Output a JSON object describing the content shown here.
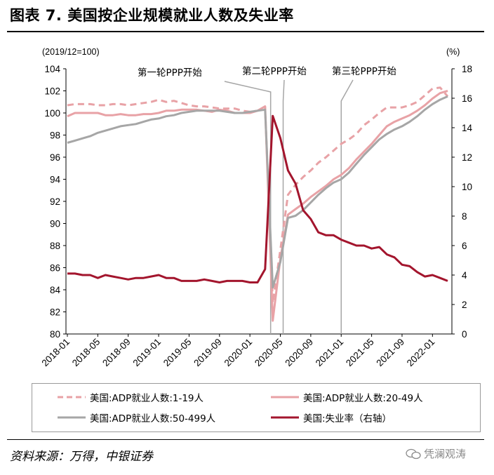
{
  "figure": {
    "title": "图表 7. 美国按企业规模就业人数及失业率",
    "source": "资料来源：万得，中银证券",
    "watermark": "凭澜观涛"
  },
  "chart_data": {
    "type": "line",
    "left_unit": "(2019/12=100)",
    "right_unit": "(%)",
    "ylim_left": [
      80,
      104
    ],
    "ylim_right": [
      0,
      18
    ],
    "yticks_left": [
      "80",
      "82",
      "84",
      "86",
      "88",
      "90",
      "92",
      "94",
      "96",
      "98",
      "100",
      "102",
      "104"
    ],
    "yticks_right": [
      "0",
      "2",
      "4",
      "6",
      "8",
      "10",
      "12",
      "14",
      "16",
      "18"
    ],
    "x": [
      "2018-01",
      "2018-02",
      "2018-03",
      "2018-04",
      "2018-05",
      "2018-06",
      "2018-07",
      "2018-08",
      "2018-09",
      "2018-10",
      "2018-11",
      "2018-12",
      "2019-01",
      "2019-02",
      "2019-03",
      "2019-04",
      "2019-05",
      "2019-06",
      "2019-07",
      "2019-08",
      "2019-09",
      "2019-10",
      "2019-11",
      "2019-12",
      "2020-01",
      "2020-02",
      "2020-03",
      "2020-04",
      "2020-05",
      "2020-06",
      "2020-07",
      "2020-08",
      "2020-09",
      "2020-10",
      "2020-11",
      "2020-12",
      "2021-01",
      "2021-02",
      "2021-03",
      "2021-04",
      "2021-05",
      "2021-06",
      "2021-07",
      "2021-08",
      "2021-09",
      "2021-10",
      "2021-11",
      "2021-12",
      "2022-01",
      "2022-02",
      "2022-03"
    ],
    "xtick_labels": [
      "2018-01",
      "2018-05",
      "2018-09",
      "2019-01",
      "2019-05",
      "2019-09",
      "2020-01",
      "2020-05",
      "2020-09",
      "2021-01",
      "2021-05",
      "2021-09",
      "2022-01"
    ],
    "series": [
      {
        "name": "美国:ADP就业人数:1-19人",
        "axis": "left",
        "color": "#e8a2a6",
        "style": "dashed",
        "values": [
          100.7,
          100.8,
          100.8,
          100.8,
          100.7,
          100.7,
          100.8,
          100.8,
          100.7,
          100.8,
          100.9,
          101.0,
          101.2,
          101.0,
          101.1,
          100.9,
          100.7,
          100.6,
          100.6,
          100.5,
          100.4,
          100.4,
          100.4,
          100.2,
          100.1,
          100.2,
          100.5,
          82.8,
          87.6,
          92.6,
          93.5,
          94.2,
          94.8,
          95.5,
          96.0,
          96.6,
          97.2,
          97.6,
          98.1,
          98.9,
          99.4,
          100.0,
          100.5,
          100.5,
          100.5,
          100.7,
          101.0,
          101.6,
          102.2,
          102.3,
          101.5
        ]
      },
      {
        "name": "美国:ADP就业人数:20-49人",
        "axis": "left",
        "color": "#e8a2a6",
        "style": "solid",
        "values": [
          99.7,
          100.0,
          100.0,
          100.0,
          100.0,
          99.8,
          99.8,
          99.9,
          99.8,
          99.8,
          99.9,
          99.9,
          100.0,
          100.2,
          100.2,
          100.3,
          100.3,
          100.3,
          100.2,
          100.1,
          100.3,
          100.2,
          100.0,
          100.0,
          100.0,
          100.2,
          100.6,
          81.2,
          86.8,
          90.8,
          91.3,
          91.8,
          92.4,
          92.9,
          93.4,
          94.0,
          94.4,
          95.0,
          95.8,
          96.5,
          97.2,
          98.0,
          98.8,
          99.2,
          99.5,
          99.8,
          100.2,
          100.7,
          101.3,
          101.8,
          102.0
        ]
      },
      {
        "name": "美国:ADP就业人数:50-499人",
        "axis": "left",
        "color": "#a6a6a6",
        "style": "solid",
        "values": [
          97.3,
          97.5,
          97.7,
          97.9,
          98.2,
          98.4,
          98.6,
          98.8,
          98.9,
          99.0,
          99.2,
          99.4,
          99.5,
          99.7,
          99.8,
          100.0,
          100.1,
          100.2,
          100.2,
          100.2,
          100.2,
          100.1,
          100.0,
          100.0,
          100.1,
          100.2,
          100.3,
          84.2,
          86.5,
          90.5,
          90.7,
          91.2,
          91.9,
          92.6,
          93.2,
          93.7,
          94.0,
          94.6,
          95.4,
          96.2,
          96.9,
          97.6,
          98.1,
          98.5,
          98.8,
          99.2,
          99.7,
          100.3,
          100.8,
          101.2,
          101.5
        ]
      },
      {
        "name": "美国:失业率（右轴）",
        "axis": "right",
        "color": "#a3152d",
        "style": "solid",
        "values": [
          4.1,
          4.1,
          4.0,
          4.0,
          3.8,
          4.0,
          3.9,
          3.8,
          3.7,
          3.8,
          3.8,
          3.9,
          4.0,
          3.8,
          3.8,
          3.6,
          3.6,
          3.6,
          3.7,
          3.6,
          3.5,
          3.6,
          3.6,
          3.6,
          3.5,
          3.5,
          4.4,
          14.8,
          13.3,
          11.1,
          10.2,
          8.4,
          7.8,
          6.9,
          6.7,
          6.7,
          6.4,
          6.2,
          6.0,
          6.0,
          5.8,
          5.9,
          5.4,
          5.2,
          4.7,
          4.6,
          4.2,
          3.9,
          4.0,
          3.8,
          3.6
        ]
      }
    ],
    "annotations": [
      {
        "label": "第一轮PPP开始",
        "x": "2020-04"
      },
      {
        "label": "第二轮PPP开始",
        "x": "2020-05"
      },
      {
        "label": "第三轮PPP开始",
        "x": "2021-01"
      }
    ]
  },
  "legend": [
    {
      "label": "美国:ADP就业人数:1-19人",
      "color": "#e8a2a6",
      "style": "dashed"
    },
    {
      "label": "美国:ADP就业人数:20-49人",
      "color": "#e8a2a6",
      "style": "solid"
    },
    {
      "label": "美国:ADP就业人数:50-499人",
      "color": "#a6a6a6",
      "style": "solid"
    },
    {
      "label": "美国:失业率（右轴）",
      "color": "#a3152d",
      "style": "solid"
    }
  ]
}
